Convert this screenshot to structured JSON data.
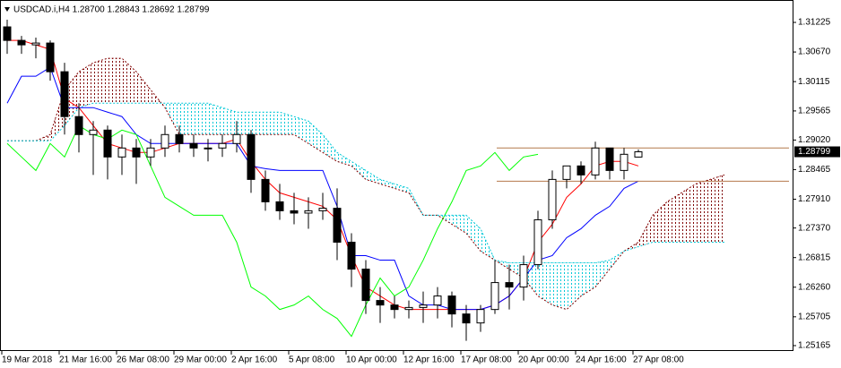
{
  "chart_data": {
    "type": "candlestick",
    "header": "USDCAD.i,H4  1.28700 1.28843 1.28692 1.28799",
    "categories": [
      "19 Mar 2018",
      null,
      null,
      null,
      "21 Mar 16:00",
      null,
      null,
      null,
      "26 Mar 08:00",
      null,
      null,
      null,
      "29 Mar 00:00",
      null,
      null,
      null,
      "2 Apr 16:00",
      null,
      null,
      null,
      "5 Apr 08:00",
      null,
      null,
      null,
      "10 Apr 00:00",
      null,
      null,
      null,
      "12 Apr 16:00",
      null,
      null,
      null,
      "17 Apr 08:00",
      null,
      null,
      null,
      "20 Apr 00:00",
      null,
      null,
      null,
      "24 Apr 16:00",
      null,
      null,
      null,
      "27 Apr 08:00",
      null,
      null,
      null,
      null,
      null,
      null,
      null,
      null,
      null,
      null
    ],
    "open": [
      1.31141,
      1.30888,
      1.30804,
      1.30838,
      1.303,
      1.29459,
      1.29122,
      1.29206,
      1.28702,
      1.2887,
      1.28702,
      1.2887,
      1.29122,
      1.28954,
      1.2887,
      1.2887,
      1.28954,
      1.29122,
      1.28281,
      1.27861,
      1.27693,
      1.2765,
      1.27693,
      1.2774,
      1.27104,
      1.26599,
      1.26011,
      1.25926,
      1.25842,
      1.2588,
      1.25926,
      1.26095,
      1.25758,
      1.2559,
      1.25842,
      1.26347,
      1.26263,
      1.26683,
      1.27524,
      1.28281,
      1.28534,
      1.28365,
      1.2887,
      1.28449,
      1.287,
      null,
      null,
      null,
      null,
      null,
      null,
      null,
      null,
      null,
      null
    ],
    "high": [
      1.31275,
      1.30972,
      1.30939,
      1.30888,
      1.30468,
      1.29711,
      1.29375,
      1.2929,
      1.29122,
      1.29038,
      1.29038,
      1.2929,
      1.2929,
      1.29122,
      1.29038,
      1.29122,
      1.29375,
      1.29206,
      1.28449,
      1.28197,
      1.28029,
      1.27945,
      1.28029,
      1.28113,
      1.27272,
      1.26767,
      1.26263,
      1.26095,
      1.26011,
      1.26179,
      1.26263,
      1.26179,
      1.25926,
      1.25926,
      1.26767,
      1.26683,
      1.26852,
      1.27693,
      1.28449,
      1.28534,
      1.28618,
      1.28988,
      1.2887,
      1.2887,
      1.28843,
      null,
      null,
      null,
      null,
      null,
      null,
      null,
      null,
      null,
      null
    ],
    "low": [
      1.30636,
      1.30636,
      1.30552,
      1.30132,
      1.29122,
      1.28786,
      1.28365,
      1.28281,
      1.28365,
      1.28197,
      1.28534,
      1.28702,
      1.28786,
      1.28702,
      1.28618,
      1.28702,
      1.28786,
      1.28029,
      1.27693,
      1.27524,
      1.2744,
      1.27356,
      1.27524,
      1.26767,
      1.26263,
      1.25758,
      1.2559,
      1.25674,
      1.25674,
      1.2559,
      1.25674,
      1.25506,
      1.25254,
      1.25422,
      1.25758,
      1.25842,
      1.26011,
      1.26599,
      1.27356,
      1.28113,
      1.28197,
      1.28281,
      1.28281,
      1.28281,
      1.28692,
      null,
      null,
      null,
      null,
      null,
      null,
      null,
      null,
      null,
      null
    ],
    "close": [
      1.30888,
      1.30804,
      1.30838,
      1.303,
      1.29459,
      1.29122,
      1.29206,
      1.28702,
      1.2887,
      1.28702,
      1.2887,
      1.29122,
      1.28954,
      1.2887,
      1.2887,
      1.28954,
      1.29122,
      1.28281,
      1.27861,
      1.27693,
      1.2765,
      1.27693,
      1.2774,
      1.27104,
      1.26599,
      1.26011,
      1.25926,
      1.25842,
      1.2588,
      1.25926,
      1.26095,
      1.25758,
      1.2559,
      1.25842,
      1.26347,
      1.26263,
      1.26683,
      1.27524,
      1.28281,
      1.28534,
      1.28365,
      1.2887,
      1.28449,
      1.28752,
      1.28799,
      null,
      null,
      null,
      null,
      null,
      null,
      null,
      null,
      null,
      null
    ],
    "candle_colors": {
      "up": "#ffffff",
      "down": "#000000",
      "outline": "#000000"
    },
    "series": [
      {
        "color": "#ff0000",
        "style": "solid",
        "values": [
          1.30888,
          1.30888,
          1.30804,
          1.3072,
          1.29795,
          1.29627,
          1.2929,
          1.28954,
          1.2887,
          1.28786,
          1.28786,
          1.2887,
          1.28954,
          1.28954,
          1.28954,
          1.28954,
          1.29038,
          1.28618,
          1.28281,
          1.28029,
          1.27945,
          1.27861,
          1.27777,
          1.27524,
          1.26852,
          1.26263,
          1.26095,
          1.25926,
          1.25842,
          1.25842,
          1.25842,
          1.25842,
          1.25842,
          1.25842,
          1.25926,
          1.26095,
          1.26431,
          1.27104,
          1.2744,
          1.27945,
          1.28197,
          1.28534,
          1.28618,
          1.28618,
          1.28534,
          null,
          null,
          null,
          null,
          null,
          null,
          null,
          null,
          null,
          null
        ]
      },
      {
        "color": "#0000ff",
        "style": "solid",
        "values": [
          1.29711,
          1.30216,
          1.30216,
          1.30384,
          1.29627,
          1.29627,
          1.29627,
          1.29543,
          1.29459,
          1.29122,
          1.28954,
          1.28954,
          1.28954,
          1.28954,
          1.28954,
          1.28954,
          1.28954,
          1.28534,
          1.28483,
          1.28449,
          1.28449,
          1.28449,
          1.28449,
          1.27777,
          1.26852,
          1.26852,
          1.26767,
          1.26767,
          1.26095,
          1.25926,
          1.25926,
          1.25842,
          1.25842,
          1.25842,
          1.25926,
          1.26095,
          1.26431,
          1.26767,
          1.26852,
          1.27188,
          1.27356,
          1.27609,
          1.27777,
          1.28113,
          1.28248,
          null,
          null,
          null,
          null,
          null,
          null,
          null,
          null,
          null,
          null
        ]
      },
      {
        "color": "#00ff00",
        "style": "solid",
        "values": [
          1.28954,
          1.28702,
          1.28449,
          1.28954,
          1.28702,
          1.2929,
          1.29122,
          1.29038,
          1.29206,
          1.29122,
          1.28534,
          1.27945,
          1.27777,
          1.27609,
          1.27609,
          1.27609,
          1.27104,
          1.26263,
          1.26095,
          1.25842,
          1.25926,
          1.26095,
          1.25842,
          1.25674,
          1.25338,
          1.25926,
          1.26431,
          1.26095,
          1.26263,
          1.26767,
          1.27356,
          1.27861,
          1.28449,
          1.28534,
          1.28786,
          1.28449,
          1.28702,
          1.28752,
          null,
          null,
          null,
          null,
          null,
          null,
          null,
          null,
          null,
          null,
          null,
          null,
          null,
          null,
          null,
          null,
          null
        ]
      },
      {
        "color": "#800000",
        "style": "dotted",
        "values": [
          1.29005,
          1.29005,
          1.29005,
          1.29122,
          1.29963,
          1.303,
          1.30468,
          1.30552,
          1.30552,
          1.303,
          1.29963,
          1.29627,
          1.29122,
          1.29122,
          1.29122,
          1.29122,
          1.29122,
          1.29122,
          1.29122,
          1.29122,
          1.29122,
          1.28954,
          1.28786,
          1.28618,
          1.28534,
          1.28281,
          1.28197,
          1.28113,
          1.28029,
          1.27609,
          1.27609,
          1.2744,
          1.27272,
          1.26936,
          1.26767,
          1.26599,
          1.26431,
          1.26095,
          1.25926,
          1.25842,
          1.26095,
          1.26263,
          1.26599,
          1.26936,
          1.27104,
          1.27609,
          1.27861,
          1.28029,
          1.28197,
          1.28281,
          1.28365,
          null,
          null,
          null,
          null
        ]
      },
      {
        "color": "#00c8d7",
        "style": "dotted",
        "values": [
          1.29005,
          1.29005,
          1.29005,
          1.29005,
          1.2929,
          1.29627,
          1.29711,
          1.29711,
          1.29711,
          1.29711,
          1.29711,
          1.29711,
          1.29711,
          1.29711,
          1.29711,
          1.29627,
          1.29543,
          1.29543,
          1.29543,
          1.29543,
          1.29459,
          1.29375,
          1.29122,
          1.28786,
          1.28618,
          1.28449,
          1.28281,
          1.28197,
          1.28113,
          1.27609,
          1.27609,
          1.27609,
          1.27609,
          1.27356,
          1.26767,
          1.26717,
          1.26717,
          1.26717,
          1.26717,
          1.26717,
          1.26717,
          1.26717,
          1.26767,
          1.26936,
          1.2702,
          1.27104,
          1.27104,
          1.27104,
          1.27104,
          1.27104,
          1.27104,
          null,
          null,
          null,
          null
        ]
      }
    ],
    "cloud": {
      "series": [
        3,
        4
      ]
    },
    "levels": {
      "color": "#b4784b",
      "values": [
        1.2887,
        1.28248
      ]
    },
    "ylim": [
      1.25064,
      1.31578
    ],
    "yticks": [
      1.31225,
      {
        "value": 1.3067,
        "label": "1.30670"
      },
      1.30115,
      1.29565,
      {
        "value": 1.2902,
        "label": "1.29020"
      },
      1.28465,
      {
        "value": 1.2791,
        "label": "1.27910"
      },
      {
        "value": 1.2737,
        "label": "1.27370"
      },
      1.26815,
      {
        "value": 1.2626,
        "label": "1.26260"
      },
      1.25705,
      1.25165
    ],
    "grid": false
  }
}
